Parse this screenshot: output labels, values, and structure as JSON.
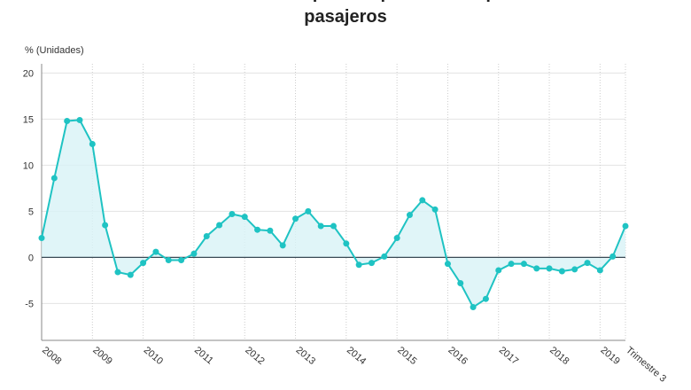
{
  "chart_data": {
    "type": "line",
    "title": "Variación interanual de los precios para el transporte aéreo de pasajeros",
    "y_label": "% (Unidades)",
    "categories": [
      "2008",
      null,
      null,
      null,
      "2009",
      null,
      null,
      null,
      "2010",
      null,
      null,
      null,
      "2011",
      null,
      null,
      null,
      "2012",
      null,
      null,
      null,
      "2013",
      null,
      null,
      null,
      "2014",
      null,
      null,
      null,
      "2015",
      null,
      null,
      null,
      "2016",
      null,
      null,
      null,
      "2017",
      null,
      null,
      null,
      "2018",
      null,
      null,
      null,
      "2019",
      null,
      "Trimestre 3"
    ],
    "values": [
      2.1,
      8.6,
      14.8,
      14.9,
      12.3,
      3.5,
      -1.6,
      -1.9,
      -0.6,
      0.6,
      -0.3,
      -0.3,
      0.4,
      2.3,
      3.5,
      4.7,
      4.4,
      3.0,
      2.9,
      1.3,
      4.2,
      5.0,
      3.4,
      3.4,
      1.5,
      -0.8,
      -0.6,
      0.1,
      2.1,
      4.6,
      6.2,
      5.2,
      -0.7,
      -2.8,
      -5.4,
      -4.5,
      -1.4,
      -0.7,
      -0.7,
      -1.2,
      -1.2,
      -1.5,
      -1.3,
      -0.6,
      -1.4,
      0.1,
      3.4
    ],
    "color": "#1fc3c3",
    "ylim": [
      -9,
      21
    ],
    "yticks": [
      -5,
      0,
      5,
      10,
      15,
      20
    ],
    "grid": true
  }
}
